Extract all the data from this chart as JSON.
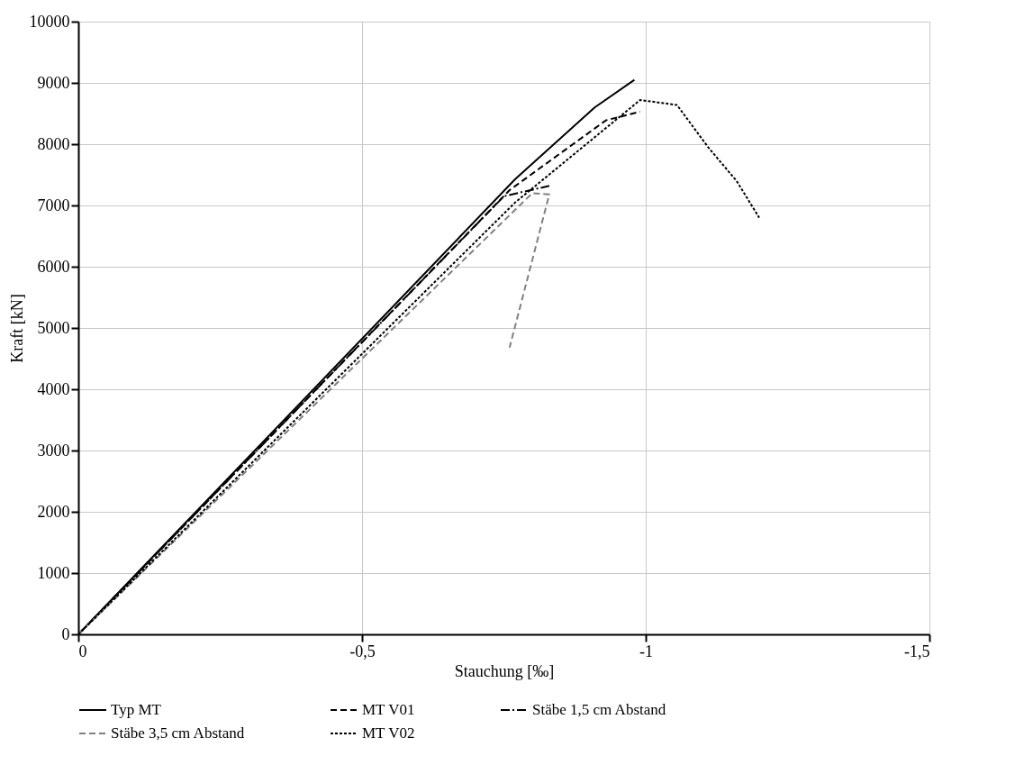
{
  "chart_data": {
    "type": "line",
    "xlabel": "Stauchung [‰]",
    "ylabel": "Kraft [kN]",
    "xlim": [
      0,
      -1.5
    ],
    "xticks": [
      0,
      {
        "value": -0.5,
        "label": "-0,5"
      },
      -1,
      {
        "value": -1.5,
        "label": "-1,5"
      }
    ],
    "ylim": [
      0,
      10000
    ],
    "yticks": [
      0,
      1000,
      2000,
      3000,
      4000,
      5000,
      6000,
      7000,
      8000,
      9000,
      10000
    ],
    "grid": true,
    "legend": "bottom",
    "marker": "none",
    "series": [
      {
        "name": "Typ MT",
        "color": "#000000",
        "line_style": "solid",
        "x": [
          0,
          -0.77,
          -0.91,
          -0.98
        ],
        "values": [
          0,
          7430,
          8600,
          9050
        ]
      },
      {
        "name": "MT V01",
        "color": "#000000",
        "line_style": "dashed",
        "x": [
          0,
          -0.76,
          -0.93,
          -0.99
        ],
        "values": [
          0,
          7250,
          8390,
          8530
        ]
      },
      {
        "name": "Stäbe 1,5 cm Abstand",
        "color": "#000000",
        "line_style": "dashdot",
        "x": [
          0,
          -0.75,
          -0.83
        ],
        "values": [
          0,
          7150,
          7320
        ]
      },
      {
        "name": "Stäbe 3,5 cm Abstand",
        "color": "#808080",
        "line_style": "dashed",
        "x": [
          0,
          -0.8,
          -0.83,
          -0.76
        ],
        "values": [
          0,
          7200,
          7180,
          4680
        ]
      },
      {
        "name": "MT V02",
        "color": "#000000",
        "line_style": "dotted",
        "x": [
          0,
          -0.77,
          -0.99,
          -1.055,
          -1.11,
          -1.16,
          -1.2
        ],
        "values": [
          0,
          7050,
          8720,
          8640,
          7950,
          7400,
          6800
        ]
      }
    ]
  }
}
